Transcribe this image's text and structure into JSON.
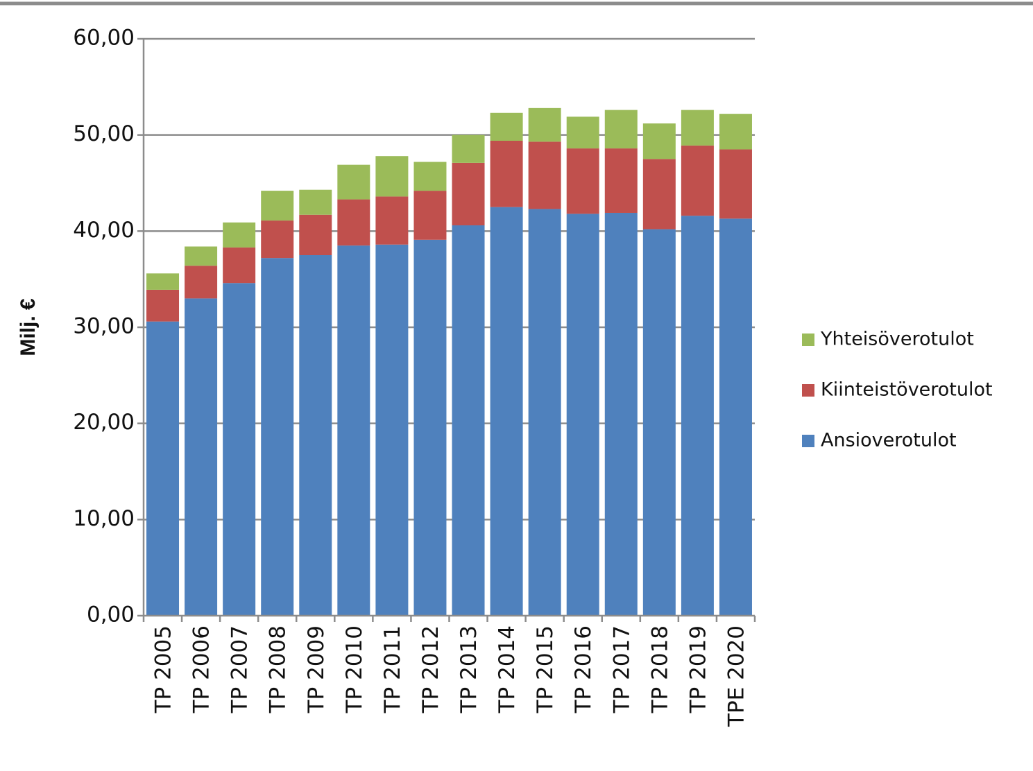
{
  "chart_data": {
    "type": "bar",
    "stacked": true,
    "ylabel": "Milj. €",
    "xlabel": "",
    "ylim": [
      0,
      60
    ],
    "yticks": [
      "0,00",
      "10,00",
      "20,00",
      "30,00",
      "40,00",
      "50,00",
      "60,00"
    ],
    "grid": true,
    "legend_position": "right",
    "categories": [
      "TP 2005",
      "TP 2006",
      "TP 2007",
      "TP 2008",
      "TP 2009",
      "TP 2010",
      "TP 2011",
      "TP 2012",
      "TP 2013",
      "TP 2014",
      "TP 2015",
      "TP 2016",
      "TP 2017",
      "TP 2018",
      "TP 2019",
      "TPE 2020"
    ],
    "series": [
      {
        "name": "Ansioverotulot",
        "color": "#4f81bd",
        "values": [
          30.6,
          33.0,
          34.6,
          37.2,
          37.5,
          38.5,
          38.6,
          39.1,
          40.6,
          42.5,
          42.3,
          41.8,
          41.9,
          40.2,
          41.6,
          41.3
        ]
      },
      {
        "name": "Kiinteistöverotulot",
        "color": "#c0504d",
        "values": [
          3.3,
          3.4,
          3.7,
          3.9,
          4.2,
          4.8,
          5.0,
          5.1,
          6.5,
          6.9,
          7.0,
          6.8,
          6.7,
          7.3,
          7.3,
          7.2
        ]
      },
      {
        "name": "Yhteisöverotulot",
        "color": "#9bbb59",
        "values": [
          1.7,
          2.0,
          2.6,
          3.1,
          2.6,
          3.6,
          4.2,
          3.0,
          2.9,
          2.9,
          3.5,
          3.3,
          4.0,
          3.7,
          3.7,
          3.7
        ]
      }
    ]
  }
}
